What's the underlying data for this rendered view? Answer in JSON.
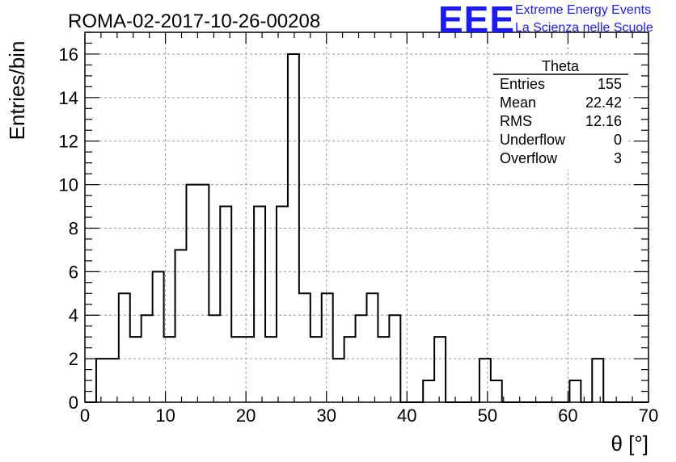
{
  "header": {
    "run_title": "ROMA-02-2017-10-26-00208",
    "brand_logo": "EEE",
    "brand_line1": "Extreme Energy Events",
    "brand_line2": "La Scienza nelle Scuole",
    "brand_color": "#1a1aff"
  },
  "stats_box": {
    "name": "Theta",
    "rows": [
      {
        "label": "Entries",
        "value": "155"
      },
      {
        "label": "Mean",
        "value": "22.42"
      },
      {
        "label": "RMS",
        "value": "12.16"
      },
      {
        "label": "Underflow",
        "value": "0"
      },
      {
        "label": "Overflow",
        "value": "3"
      }
    ]
  },
  "chart_data": {
    "type": "histogram",
    "xlabel": "θ [°]",
    "ylabel": "Entries/bin",
    "xlim": [
      0,
      70
    ],
    "ylim": [
      0,
      17
    ],
    "xticks": [
      0,
      10,
      20,
      30,
      40,
      50,
      60,
      70
    ],
    "yticks": [
      0,
      2,
      4,
      6,
      8,
      10,
      12,
      14,
      16
    ],
    "grid": true,
    "bin_edges": [
      0.0,
      1.4,
      2.8,
      4.2,
      5.6,
      7.0,
      8.4,
      9.8,
      11.2,
      12.6,
      14.0,
      15.4,
      16.8,
      18.2,
      19.6,
      21.0,
      22.4,
      23.8,
      25.2,
      26.6,
      28.0,
      29.4,
      30.8,
      32.2,
      33.6,
      35.0,
      36.4,
      37.8,
      39.2,
      40.6,
      42.0,
      43.4,
      44.8,
      46.2,
      47.6,
      49.0,
      50.4,
      51.8,
      53.2,
      54.6,
      56.0,
      57.4,
      58.8,
      60.2,
      61.6,
      63.0,
      64.4,
      65.8,
      67.2,
      68.6,
      70.0
    ],
    "counts": [
      0,
      2,
      2,
      5,
      3,
      4,
      6,
      3,
      7,
      10,
      10,
      4,
      9,
      3,
      3,
      9,
      3,
      9,
      16,
      5,
      3,
      5,
      2,
      3,
      4,
      5,
      3,
      4,
      0,
      0,
      1,
      3,
      0,
      0,
      0,
      2,
      1,
      0,
      0,
      0,
      0,
      0,
      0,
      1,
      0,
      2,
      0,
      0,
      0,
      0
    ]
  }
}
